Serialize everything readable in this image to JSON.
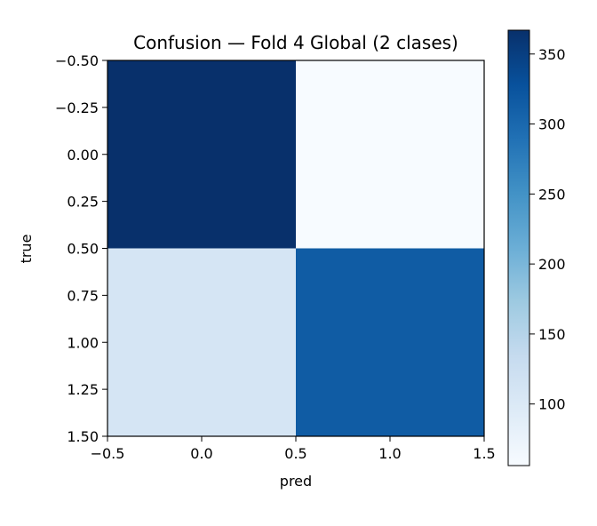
{
  "chart_data": {
    "type": "heatmap",
    "title": "Confusion — Fold 4 Global (2 clases)",
    "xlabel": "pred",
    "ylabel": "true",
    "x_ticks": [
      "−0.5",
      "0.0",
      "0.5",
      "1.0",
      "1.5"
    ],
    "y_ticks": [
      "−0.50",
      "−0.25",
      "0.00",
      "0.25",
      "0.50",
      "0.75",
      "1.00",
      "1.25",
      "1.50"
    ],
    "xlim": [
      -0.5,
      1.5
    ],
    "ylim": [
      1.5,
      -0.5
    ],
    "rows": [
      0,
      1
    ],
    "cols": [
      0,
      1
    ],
    "values": [
      [
        367,
        56
      ],
      [
        110,
        315
      ]
    ],
    "colormap": "Blues",
    "colorbar": {
      "min": 56,
      "max": 367,
      "ticks": [
        "100",
        "150",
        "200",
        "250",
        "300",
        "350"
      ]
    },
    "grid": false
  }
}
